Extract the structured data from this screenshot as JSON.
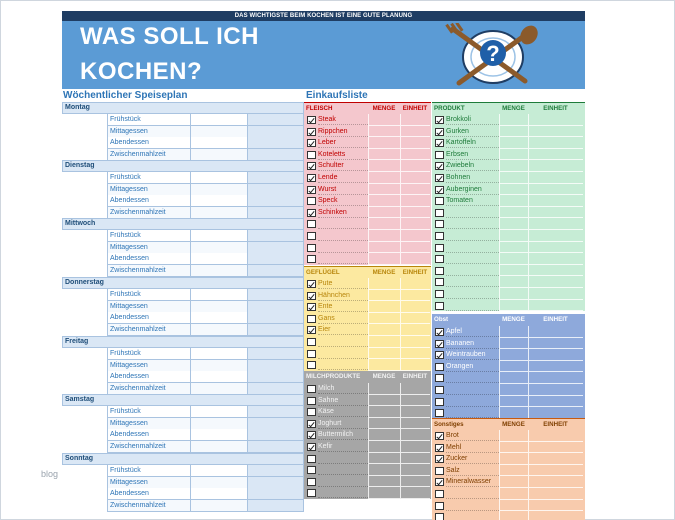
{
  "header": {
    "tagline": "DAS WICHTIGSTE BEIM KOCHEN IST EINE GUTE PLANUNG",
    "title_line1": "WAS SOLL ICH",
    "title_line2": "KOCHEN?",
    "logo_icon": "plate-fork-spoon-question-icon",
    "banner_color": "#5b9bd5",
    "bar_color": "#1f3d63"
  },
  "plan": {
    "title": "Wöchentlicher Speiseplan",
    "days": [
      {
        "name": "Montag",
        "meals": [
          "Frühstück",
          "Mittagessen",
          "Abendessen",
          "Zwischenmahlzeit"
        ]
      },
      {
        "name": "Dienstag",
        "meals": [
          "Frühstück",
          "Mittagessen",
          "Abendessen",
          "Zwischenmahlzeit"
        ]
      },
      {
        "name": "Mittwoch",
        "meals": [
          "Frühstück",
          "Mittagessen",
          "Abendessen",
          "Zwischenmahlzeit"
        ]
      },
      {
        "name": "Donnerstag",
        "meals": [
          "Frühstück",
          "Mittagessen",
          "Abendessen",
          "Zwischenmahlzeit"
        ]
      },
      {
        "name": "Freitag",
        "meals": [
          "Frühstück",
          "Mittagessen",
          "Abendessen",
          "Zwischenmahlzeit"
        ]
      },
      {
        "name": "Samstag",
        "meals": [
          "Frühstück",
          "Mittagessen",
          "Abendessen",
          "Zwischenmahlzeit"
        ]
      },
      {
        "name": "Sonntag",
        "meals": [
          "Frühstück",
          "Mittagessen",
          "Abendessen",
          "Zwischenmahlzeit"
        ]
      }
    ]
  },
  "shopping": {
    "title": "Einkaufsliste",
    "sections": [
      {
        "key": "fleisch",
        "cls": "fleisch",
        "side": "left",
        "name": "FLEISCH",
        "menge": "MENGE",
        "einheit": "EINHEIT",
        "items": [
          {
            "label": "Steak",
            "checked": true
          },
          {
            "label": "Rippchen",
            "checked": true
          },
          {
            "label": "Leber",
            "checked": true
          },
          {
            "label": "Koteletts",
            "checked": false
          },
          {
            "label": "Schulter",
            "checked": true
          },
          {
            "label": "Lende",
            "checked": true
          },
          {
            "label": "Wurst",
            "checked": true
          },
          {
            "label": "Speck",
            "checked": false
          },
          {
            "label": "Schinken",
            "checked": true
          },
          {
            "label": "",
            "checked": false
          },
          {
            "label": "",
            "checked": false
          },
          {
            "label": "",
            "checked": false
          },
          {
            "label": "",
            "checked": false
          }
        ]
      },
      {
        "key": "gefluegel",
        "cls": "gefluegel",
        "side": "left",
        "name": "GEFLÜGEL",
        "menge": "MENGE",
        "einheit": "EINHEIT",
        "items": [
          {
            "label": "Pute",
            "checked": true
          },
          {
            "label": "Hähnchen",
            "checked": true
          },
          {
            "label": "Ente",
            "checked": true
          },
          {
            "label": "Gans",
            "checked": false
          },
          {
            "label": "Eier",
            "checked": true
          },
          {
            "label": "",
            "checked": false
          },
          {
            "label": "",
            "checked": false
          },
          {
            "label": "",
            "checked": false
          }
        ]
      },
      {
        "key": "milch",
        "cls": "milch",
        "side": "left",
        "name": "MILCHPRODUKTE",
        "menge": "MENGE",
        "einheit": "EINHEIT",
        "items": [
          {
            "label": "Milch",
            "checked": false
          },
          {
            "label": "Sahne",
            "checked": false
          },
          {
            "label": "Käse",
            "checked": false
          },
          {
            "label": "Joghurt",
            "checked": true
          },
          {
            "label": "Buttermilch",
            "checked": true
          },
          {
            "label": "Kefir",
            "checked": true
          },
          {
            "label": "",
            "checked": false
          },
          {
            "label": "",
            "checked": false
          },
          {
            "label": "",
            "checked": false
          },
          {
            "label": "",
            "checked": false
          }
        ]
      },
      {
        "key": "produkt",
        "cls": "produkt",
        "side": "right",
        "name": "PRODUKT",
        "menge": "MENGE",
        "einheit": "EINHEIT",
        "items": [
          {
            "label": "Brokkoli",
            "checked": true
          },
          {
            "label": "Gurken",
            "checked": true
          },
          {
            "label": "Kartoffeln",
            "checked": true
          },
          {
            "label": "Erbsen",
            "checked": false
          },
          {
            "label": "Zwiebeln",
            "checked": true
          },
          {
            "label": "Bohnen",
            "checked": true
          },
          {
            "label": "Auberginen",
            "checked": true
          },
          {
            "label": "Tomaten",
            "checked": false
          },
          {
            "label": "",
            "checked": false
          },
          {
            "label": "",
            "checked": false
          },
          {
            "label": "",
            "checked": false
          },
          {
            "label": "",
            "checked": false
          },
          {
            "label": "",
            "checked": false
          },
          {
            "label": "",
            "checked": false
          },
          {
            "label": "",
            "checked": false
          },
          {
            "label": "",
            "checked": false
          },
          {
            "label": "",
            "checked": false
          }
        ]
      },
      {
        "key": "obst",
        "cls": "obst",
        "side": "right",
        "name": "Obst",
        "menge": "MENGE",
        "einheit": "EINHEIT",
        "items": [
          {
            "label": "Apfel",
            "checked": true
          },
          {
            "label": "Bananen",
            "checked": true
          },
          {
            "label": "Weintrauben",
            "checked": true
          },
          {
            "label": "Orangen",
            "checked": false
          },
          {
            "label": "",
            "checked": false
          },
          {
            "label": "",
            "checked": false
          },
          {
            "label": "",
            "checked": false
          },
          {
            "label": "",
            "checked": false
          }
        ]
      },
      {
        "key": "sonst",
        "cls": "sonst",
        "side": "right",
        "name": "Sonstiges",
        "menge": "MENGE",
        "einheit": "EINHEIT",
        "items": [
          {
            "label": "Brot",
            "checked": true
          },
          {
            "label": "Mehl",
            "checked": true
          },
          {
            "label": "Zucker",
            "checked": true
          },
          {
            "label": "Salz",
            "checked": false
          },
          {
            "label": "Mineralwasser",
            "checked": true
          },
          {
            "label": "",
            "checked": false
          },
          {
            "label": "",
            "checked": false
          },
          {
            "label": "",
            "checked": false
          }
        ]
      }
    ]
  },
  "watermark": "blog"
}
